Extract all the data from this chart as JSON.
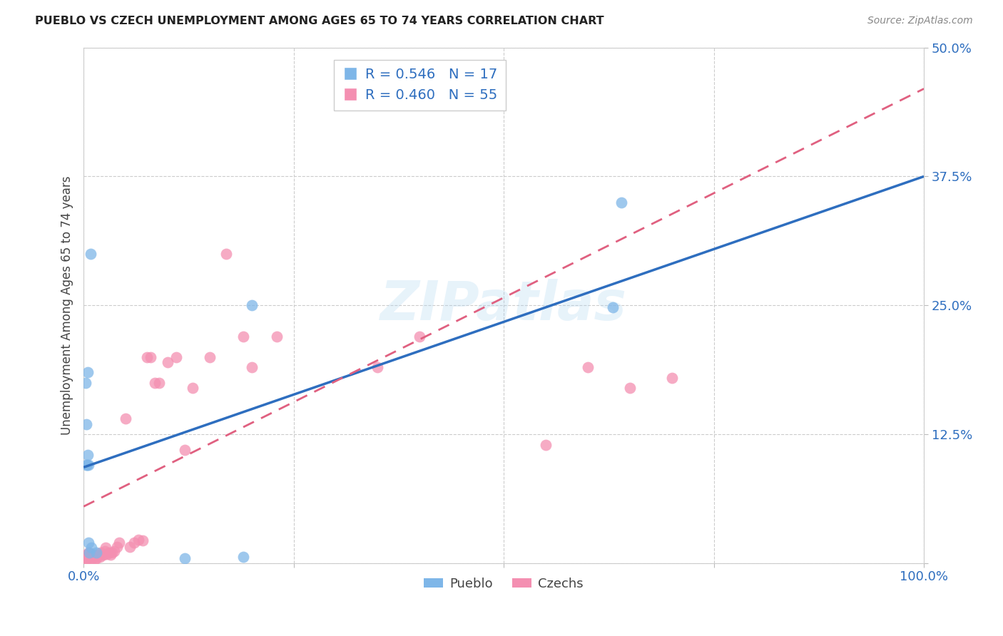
{
  "title": "PUEBLO VS CZECH UNEMPLOYMENT AMONG AGES 65 TO 74 YEARS CORRELATION CHART",
  "source": "Source: ZipAtlas.com",
  "ylabel": "Unemployment Among Ages 65 to 74 years",
  "xlim": [
    0,
    1.0
  ],
  "ylim": [
    0,
    0.5
  ],
  "pueblo_color": "#7EB6E8",
  "czech_color": "#F48FB1",
  "trendline_pueblo_color": "#2E6EBF",
  "trendline_czech_color": "#E06080",
  "R_pueblo": 0.546,
  "N_pueblo": 17,
  "R_czech": 0.46,
  "N_czech": 55,
  "background_color": "#ffffff",
  "grid_color": "#cccccc",
  "watermark_text": "ZIPatlas",
  "pueblo_trendline_x0": 0.0,
  "pueblo_trendline_y0": 0.093,
  "pueblo_trendline_x1": 1.0,
  "pueblo_trendline_y1": 0.375,
  "czech_trendline_x0": 0.0,
  "czech_trendline_y0": 0.055,
  "czech_trendline_x1": 1.0,
  "czech_trendline_y1": 0.46,
  "pueblo_x": [
    0.002,
    0.003,
    0.003,
    0.004,
    0.005,
    0.006,
    0.006,
    0.007,
    0.009,
    0.015,
    0.19,
    0.2,
    0.63,
    0.64,
    0.005,
    0.008,
    0.12
  ],
  "pueblo_y": [
    0.175,
    0.095,
    0.135,
    0.095,
    0.185,
    0.095,
    0.02,
    0.01,
    0.015,
    0.01,
    0.006,
    0.25,
    0.248,
    0.35,
    0.105,
    0.3,
    0.005
  ],
  "czech_x": [
    0.002,
    0.003,
    0.003,
    0.004,
    0.005,
    0.005,
    0.006,
    0.006,
    0.007,
    0.008,
    0.009,
    0.01,
    0.01,
    0.012,
    0.013,
    0.015,
    0.016,
    0.018,
    0.019,
    0.02,
    0.022,
    0.024,
    0.025,
    0.026,
    0.028,
    0.03,
    0.032,
    0.034,
    0.036,
    0.04,
    0.042,
    0.05,
    0.055,
    0.06,
    0.065,
    0.07,
    0.075,
    0.08,
    0.085,
    0.09,
    0.1,
    0.11,
    0.12,
    0.13,
    0.15,
    0.17,
    0.19,
    0.2,
    0.23,
    0.35,
    0.4,
    0.55,
    0.6,
    0.65,
    0.7
  ],
  "czech_y": [
    0.005,
    0.005,
    0.008,
    0.004,
    0.005,
    0.006,
    0.01,
    0.006,
    0.007,
    0.006,
    0.008,
    0.009,
    0.005,
    0.006,
    0.004,
    0.005,
    0.007,
    0.008,
    0.006,
    0.01,
    0.008,
    0.008,
    0.012,
    0.015,
    0.009,
    0.01,
    0.008,
    0.01,
    0.012,
    0.016,
    0.02,
    0.14,
    0.016,
    0.02,
    0.023,
    0.022,
    0.2,
    0.2,
    0.175,
    0.175,
    0.195,
    0.2,
    0.11,
    0.17,
    0.2,
    0.3,
    0.22,
    0.19,
    0.22,
    0.19,
    0.22,
    0.115,
    0.19,
    0.17,
    0.18
  ]
}
